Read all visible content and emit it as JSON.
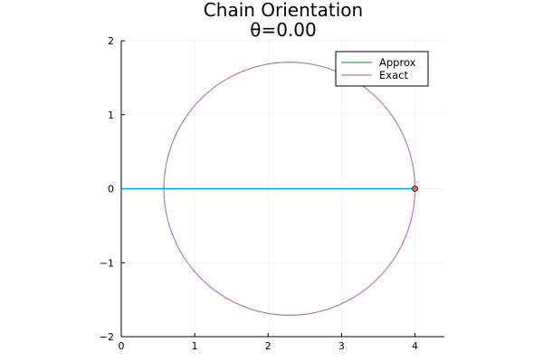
{
  "chart_data": {
    "type": "line",
    "title": "Chain Orientation",
    "subtitle": "θ=0.00",
    "xlabel": "",
    "ylabel": "",
    "xlim": [
      0,
      4.4
    ],
    "ylim": [
      -2,
      2
    ],
    "x_ticks": [
      0,
      1,
      2,
      3,
      4
    ],
    "y_ticks": [
      -2,
      -1,
      0,
      1,
      2
    ],
    "x_tick_labels": [
      "0",
      "1",
      "2",
      "3",
      "4"
    ],
    "y_tick_labels": [
      "−2",
      "−1",
      "0",
      "1",
      "2"
    ],
    "grid": true,
    "legend_position": "top-right",
    "series": [
      {
        "name": "Approx",
        "color": "#3da44d",
        "kind": "line",
        "circle": {
          "cx": 2.29,
          "cy": 0,
          "r": 1.71
        }
      },
      {
        "name": "Exact",
        "color": "#c271d2",
        "kind": "line",
        "circle": {
          "cx": 2.29,
          "cy": 0,
          "r": 1.71
        }
      },
      {
        "kind": "segment",
        "color": "#009af9",
        "x": [
          0,
          4
        ],
        "y": [
          0,
          0
        ]
      },
      {
        "kind": "point",
        "color": "#e26f46",
        "x": [
          4
        ],
        "y": [
          0
        ]
      }
    ]
  }
}
